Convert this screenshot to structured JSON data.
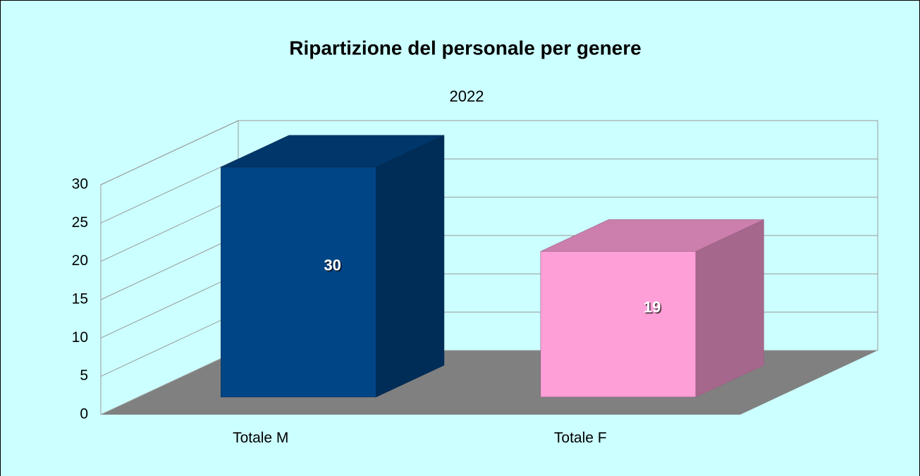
{
  "chart_data": {
    "type": "bar3d",
    "title": "Ripartizione del personale per genere",
    "subtitle": "2022",
    "categories": [
      "Totale M",
      "Totale F"
    ],
    "values": [
      30,
      19
    ],
    "colors": [
      "#004586",
      "#ff9fd8"
    ],
    "ylim": [
      0,
      30
    ],
    "yticks": [
      0,
      5,
      10,
      15,
      20,
      25,
      30
    ],
    "grid": true,
    "floor_color": "#808080",
    "background": "#ccffff"
  }
}
